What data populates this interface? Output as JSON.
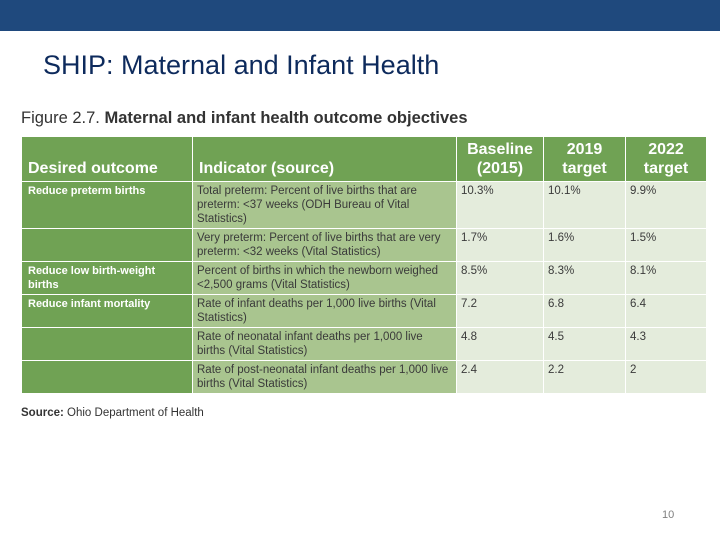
{
  "slide": {
    "title": "SHIP: Maternal and Infant Health",
    "page_number": "10",
    "colors": {
      "top_bar": "#1f497d",
      "title": "#0d2a5c",
      "header_green": "#70a254",
      "indicator_green": "#a9c58f",
      "value_cell": "#e4ecdc"
    }
  },
  "figure": {
    "label": "Figure 2.7.",
    "title": "Maternal and infant health outcome objectives"
  },
  "table": {
    "headers": {
      "outcome": "Desired outcome",
      "indicator": "Indicator (source)",
      "baseline_line1": "Baseline",
      "baseline_line2": "(2015)",
      "t2019_line1": "2019",
      "t2019_line2": "target",
      "t2022_line1": "2022",
      "t2022_line2": "target"
    },
    "rows": [
      {
        "outcome": "Reduce preterm births",
        "indicator": "Total preterm: Percent of live births that are preterm: <37 weeks (ODH Bureau of Vital Statistics)",
        "baseline": "10.3%",
        "t2019": "10.1%",
        "t2022": "9.9%"
      },
      {
        "outcome": "",
        "indicator": "Very preterm: Percent of live births that are very preterm: <32 weeks (Vital Statistics)",
        "baseline": "1.7%",
        "t2019": "1.6%",
        "t2022": "1.5%"
      },
      {
        "outcome": "Reduce low birth-weight births",
        "indicator": "Percent of births in which the newborn weighed <2,500 grams (Vital Statistics)",
        "baseline": "8.5%",
        "t2019": "8.3%",
        "t2022": "8.1%"
      },
      {
        "outcome": "Reduce infant mortality",
        "indicator": "Rate of infant deaths per 1,000 live births (Vital Statistics)",
        "baseline": "7.2",
        "t2019": "6.8",
        "t2022": "6.4"
      },
      {
        "outcome": "",
        "indicator": "Rate of neonatal infant deaths per 1,000 live births (Vital Statistics)",
        "baseline": "4.8",
        "t2019": "4.5",
        "t2022": "4.3"
      },
      {
        "outcome": "",
        "indicator": "Rate of post-neonatal infant deaths per 1,000 live births (Vital Statistics)",
        "baseline": "2.4",
        "t2019": "2.2",
        "t2022": "2"
      }
    ]
  },
  "source": {
    "label": "Source:",
    "text": "Ohio Department of Health"
  }
}
